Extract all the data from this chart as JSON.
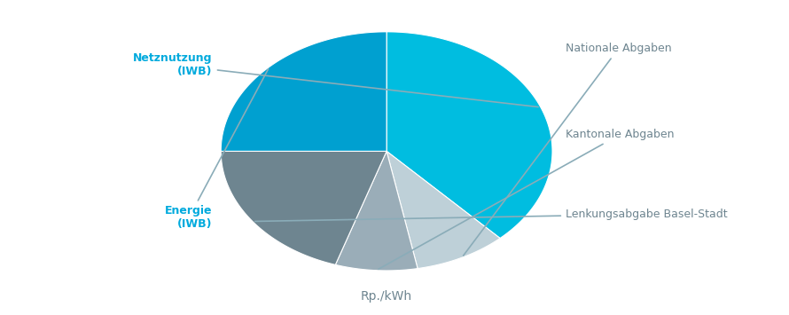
{
  "slices": [
    {
      "label": "Netznutzung\n(IWB)",
      "value": 38,
      "color": "#00BDE0",
      "side": "left"
    },
    {
      "label": "Nationale Abgaben",
      "value": 9,
      "color": "#BED0D8",
      "side": "right"
    },
    {
      "label": "Kantonale Abgaben",
      "value": 8,
      "color": "#9AADB8",
      "side": "right"
    },
    {
      "label": "Lenkungsabgabe Basel-Stadt",
      "value": 20,
      "color": "#6E8590",
      "side": "right"
    },
    {
      "label": "Energie\n(IWB)",
      "value": 25,
      "color": "#00A0D0",
      "side": "left"
    }
  ],
  "xlabel": "Rp./kWh",
  "left_label_color": "#00AADD",
  "right_label_color": "#6E8590",
  "xlabel_color": "#6E8590",
  "background_color": "#FFFFFF",
  "startangle": 90,
  "figsize": [
    8.9,
    3.55
  ],
  "dpi": 100,
  "ellipse_yscale": 0.72
}
